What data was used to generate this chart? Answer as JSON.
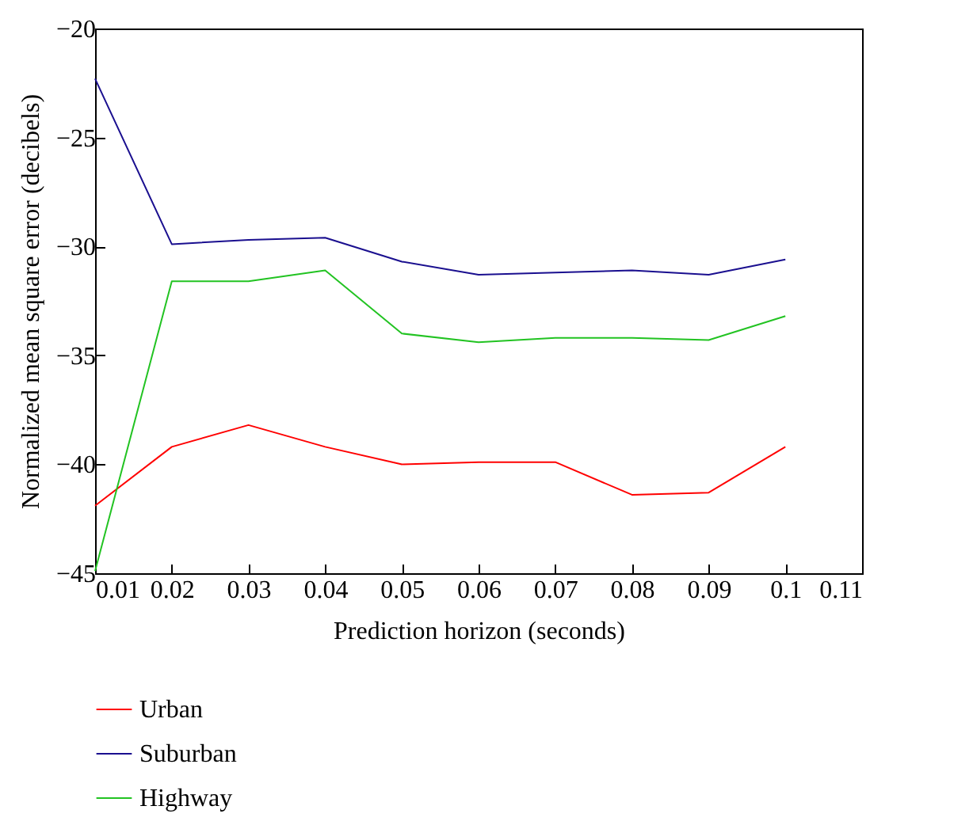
{
  "chart_data": {
    "type": "line",
    "xlabel": "Prediction horizon (seconds)",
    "ylabel": "Normalized mean square error (decibels)",
    "x": [
      0.01,
      0.02,
      0.03,
      0.04,
      0.05,
      0.06,
      0.07,
      0.08,
      0.09,
      0.1
    ],
    "series": [
      {
        "name": "Urban",
        "color": "#ff0000",
        "values": [
          -41.9,
          -39.2,
          -38.2,
          -39.2,
          -40.0,
          -39.9,
          -39.9,
          -41.4,
          -41.3,
          -39.2
        ]
      },
      {
        "name": "Suburban",
        "color": "#1a0f8f",
        "values": [
          -22.3,
          -29.9,
          -29.7,
          -29.6,
          -30.7,
          -31.3,
          -31.2,
          -31.1,
          -31.3,
          -30.6
        ]
      },
      {
        "name": "Highway",
        "color": "#22c322",
        "values": [
          -44.9,
          -31.6,
          -31.6,
          -31.1,
          -34.0,
          -34.4,
          -34.2,
          -34.2,
          -34.3,
          -33.2
        ]
      }
    ],
    "xlim": [
      0.01,
      0.11
    ],
    "xticks": [
      0.01,
      0.02,
      0.03,
      0.04,
      0.05,
      0.06,
      0.07,
      0.08,
      0.09,
      0.1,
      0.11
    ],
    "ylim": [
      -45,
      -20
    ],
    "yticks": [
      -45,
      -40,
      -35,
      -30,
      -25,
      -20
    ],
    "legend": "bottom left",
    "grid": false,
    "marker": "none",
    "line_style": "solid"
  }
}
